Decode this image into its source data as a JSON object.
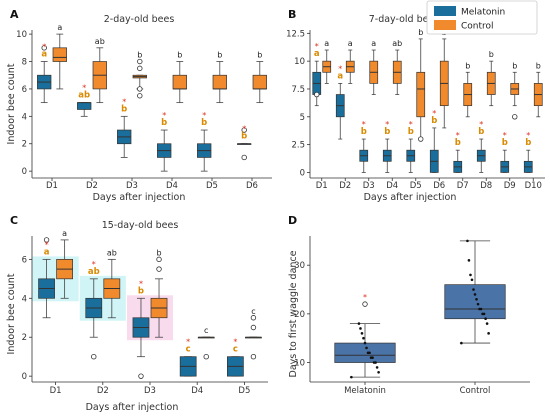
{
  "colors": {
    "melatonin": "#1a6e9b",
    "control": "#f08a2c",
    "box_d": "#4a73a8",
    "highlight_cyan": "#c6f2f4",
    "highlight_pink": "#f8d2ea",
    "star": "#e0301e",
    "letter_color": "#d98a00"
  },
  "legend": {
    "melatonin": "Melatonin",
    "control": "Control"
  },
  "chart_data": [
    {
      "panel": "A",
      "type": "box",
      "title": "2-day-old bees",
      "ylabel": "Indoor bee count",
      "xlabel": "Days after injection",
      "categories": [
        "D1",
        "D2",
        "D3",
        "D4",
        "D5",
        "D6"
      ],
      "ylim": [
        -0.5,
        10.3
      ],
      "yticks": [
        0,
        2,
        4,
        6,
        8,
        10
      ],
      "series": [
        {
          "name": "Melatonin",
          "boxes": [
            {
              "min": 5,
              "q1": 6,
              "med": 6.5,
              "q3": 7,
              "max": 8,
              "outliers": [
                9
              ]
            },
            {
              "min": 4,
              "q1": 4.5,
              "med": 5,
              "q3": 5,
              "max": 5,
              "outliers": []
            },
            {
              "min": 1,
              "q1": 2,
              "med": 2.5,
              "q3": 3,
              "max": 4,
              "outliers": []
            },
            {
              "min": 0,
              "q1": 1,
              "med": 1.5,
              "q3": 2,
              "max": 3,
              "outliers": []
            },
            {
              "min": 0,
              "q1": 1,
              "med": 1.5,
              "q3": 2,
              "max": 3,
              "outliers": []
            },
            {
              "min": 2,
              "q1": 2,
              "med": 2,
              "q3": 2,
              "max": 2,
              "outliers": [
                1,
                3
              ]
            }
          ]
        },
        {
          "name": "Control",
          "boxes": [
            {
              "min": 6,
              "q1": 8,
              "med": 8.3,
              "q3": 9,
              "max": 10,
              "outliers": []
            },
            {
              "min": 5,
              "q1": 6,
              "med": 7,
              "q3": 8,
              "max": 9,
              "outliers": []
            },
            {
              "min": 6,
              "q1": 6.8,
              "med": 6.9,
              "q3": 7,
              "max": 7,
              "outliers": [
                8,
                7.5,
                6,
                5.5
              ]
            },
            {
              "min": 5,
              "q1": 6,
              "med": 6,
              "q3": 7,
              "max": 8,
              "outliers": []
            },
            {
              "min": 5,
              "q1": 6,
              "med": 6,
              "q3": 7,
              "max": 8,
              "outliers": []
            },
            {
              "min": 5,
              "q1": 6,
              "med": 6,
              "q3": 7,
              "max": 8,
              "outliers": []
            }
          ]
        }
      ],
      "annotations": [
        {
          "cat": 0,
          "series": 0,
          "letter": "a",
          "star": true
        },
        {
          "cat": 0,
          "series": 1,
          "letter": "a",
          "star": false
        },
        {
          "cat": 1,
          "series": 0,
          "letter": "ab",
          "star": true
        },
        {
          "cat": 1,
          "series": 1,
          "letter": "ab",
          "star": false
        },
        {
          "cat": 2,
          "series": 0,
          "letter": "b",
          "star": true
        },
        {
          "cat": 2,
          "series": 1,
          "letter": "b",
          "star": false
        },
        {
          "cat": 3,
          "series": 0,
          "letter": "b",
          "star": true
        },
        {
          "cat": 3,
          "series": 1,
          "letter": "b",
          "star": false
        },
        {
          "cat": 4,
          "series": 0,
          "letter": "b",
          "star": true
        },
        {
          "cat": 4,
          "series": 1,
          "letter": "b",
          "star": false
        },
        {
          "cat": 5,
          "series": 0,
          "letter": "b",
          "star": true
        },
        {
          "cat": 5,
          "series": 1,
          "letter": "b",
          "star": false
        }
      ]
    },
    {
      "panel": "B",
      "type": "box",
      "title": "7-day-old bees",
      "ylabel": "",
      "xlabel": "Days after injection",
      "categories": [
        "D1",
        "D2",
        "D3",
        "D4",
        "D5",
        "D6",
        "D7",
        "D8",
        "D9",
        "D10"
      ],
      "ylim": [
        -0.5,
        12.8
      ],
      "yticks": [
        0,
        2.5,
        5,
        7.5,
        10,
        12.5
      ],
      "series": [
        {
          "name": "Melatonin",
          "boxes": [
            {
              "min": 6,
              "q1": 7,
              "med": 8,
              "q3": 9,
              "max": 10,
              "outliers": [
                7
              ]
            },
            {
              "min": 3,
              "q1": 5,
              "med": 6,
              "q3": 7,
              "max": 8,
              "outliers": []
            },
            {
              "min": 0,
              "q1": 1,
              "med": 1.5,
              "q3": 2,
              "max": 3,
              "outliers": []
            },
            {
              "min": 0,
              "q1": 1,
              "med": 1.5,
              "q3": 2,
              "max": 3,
              "outliers": []
            },
            {
              "min": 0,
              "q1": 1,
              "med": 1.5,
              "q3": 2,
              "max": 3,
              "outliers": []
            },
            {
              "min": 0,
              "q1": 0,
              "med": 1,
              "q3": 2,
              "max": 4,
              "outliers": []
            },
            {
              "min": 0,
              "q1": 0,
              "med": 0.5,
              "q3": 1,
              "max": 2,
              "outliers": []
            },
            {
              "min": 0,
              "q1": 1,
              "med": 1.5,
              "q3": 2,
              "max": 3,
              "outliers": []
            },
            {
              "min": 0,
              "q1": 0,
              "med": 0.5,
              "q3": 1,
              "max": 2,
              "outliers": []
            },
            {
              "min": 0,
              "q1": 0,
              "med": 0.5,
              "q3": 1,
              "max": 2,
              "outliers": []
            }
          ]
        },
        {
          "name": "Control",
          "boxes": [
            {
              "min": 8,
              "q1": 9,
              "med": 9.5,
              "q3": 10,
              "max": 11,
              "outliers": []
            },
            {
              "min": 8,
              "q1": 9,
              "med": 9.5,
              "q3": 10,
              "max": 11,
              "outliers": []
            },
            {
              "min": 7,
              "q1": 8,
              "med": 9,
              "q3": 10,
              "max": 11,
              "outliers": []
            },
            {
              "min": 7,
              "q1": 8,
              "med": 9,
              "q3": 10,
              "max": 11,
              "outliers": []
            },
            {
              "min": 3,
              "q1": 5,
              "med": 7.5,
              "q3": 9,
              "max": 12,
              "outliers": [
                3
              ]
            },
            {
              "min": 4,
              "q1": 6,
              "med": 8,
              "q3": 10,
              "max": 12,
              "outliers": []
            },
            {
              "min": 5,
              "q1": 6,
              "med": 7,
              "q3": 8,
              "max": 9,
              "outliers": []
            },
            {
              "min": 6,
              "q1": 7,
              "med": 8,
              "q3": 9,
              "max": 10,
              "outliers": []
            },
            {
              "min": 6,
              "q1": 7,
              "med": 7.5,
              "q3": 8,
              "max": 9,
              "outliers": [
                5
              ]
            },
            {
              "min": 5,
              "q1": 6,
              "med": 7,
              "q3": 8,
              "max": 9,
              "outliers": []
            }
          ]
        }
      ],
      "annotations": [
        {
          "cat": 0,
          "series": 0,
          "letter": "a",
          "star": true
        },
        {
          "cat": 0,
          "series": 1,
          "letter": "a",
          "star": false
        },
        {
          "cat": 1,
          "series": 0,
          "letter": "a",
          "star": true
        },
        {
          "cat": 1,
          "series": 1,
          "letter": "a",
          "star": false
        },
        {
          "cat": 2,
          "series": 0,
          "letter": "b",
          "star": true
        },
        {
          "cat": 2,
          "series": 1,
          "letter": "a",
          "star": false
        },
        {
          "cat": 3,
          "series": 0,
          "letter": "b",
          "star": true
        },
        {
          "cat": 3,
          "series": 1,
          "letter": "ab",
          "star": false
        },
        {
          "cat": 4,
          "series": 0,
          "letter": "b",
          "star": true
        },
        {
          "cat": 4,
          "series": 1,
          "letter": "b",
          "star": false
        },
        {
          "cat": 5,
          "series": 0,
          "letter": "b",
          "star": true
        },
        {
          "cat": 5,
          "series": 1,
          "letter": "b",
          "star": false
        },
        {
          "cat": 6,
          "series": 0,
          "letter": "b",
          "star": true
        },
        {
          "cat": 6,
          "series": 1,
          "letter": "b",
          "star": false
        },
        {
          "cat": 7,
          "series": 0,
          "letter": "b",
          "star": true
        },
        {
          "cat": 7,
          "series": 1,
          "letter": "b",
          "star": false
        },
        {
          "cat": 8,
          "series": 0,
          "letter": "b",
          "star": true
        },
        {
          "cat": 8,
          "series": 1,
          "letter": "b",
          "star": false
        },
        {
          "cat": 9,
          "series": 0,
          "letter": "b",
          "star": true
        },
        {
          "cat": 9,
          "series": 1,
          "letter": "b",
          "star": false
        }
      ]
    },
    {
      "panel": "C",
      "type": "box",
      "title": "15-day-old bees",
      "ylabel": "Indoor bee count",
      "xlabel": "Days after injection",
      "categories": [
        "D1",
        "D2",
        "D3",
        "D4",
        "D5"
      ],
      "ylim": [
        -0.3,
        7.2
      ],
      "yticks": [
        0,
        2,
        4,
        6
      ],
      "series": [
        {
          "name": "Melatonin",
          "boxes": [
            {
              "min": 3,
              "q1": 4,
              "med": 4.5,
              "q3": 5,
              "max": 6,
              "outliers": [
                7
              ]
            },
            {
              "min": 2,
              "q1": 3,
              "med": 3.5,
              "q3": 4,
              "max": 5,
              "outliers": [
                1
              ]
            },
            {
              "min": 1,
              "q1": 2,
              "med": 2.5,
              "q3": 3,
              "max": 4,
              "outliers": [
                0
              ]
            },
            {
              "min": 0,
              "q1": 0,
              "med": 0.5,
              "q3": 1,
              "max": 1,
              "outliers": []
            },
            {
              "min": 0,
              "q1": 0,
              "med": 0.5,
              "q3": 1,
              "max": 1,
              "outliers": []
            }
          ]
        },
        {
          "name": "Control",
          "boxes": [
            {
              "min": 4,
              "q1": 5,
              "med": 5.5,
              "q3": 6,
              "max": 7,
              "outliers": []
            },
            {
              "min": 3,
              "q1": 4,
              "med": 4.5,
              "q3": 5,
              "max": 6,
              "outliers": []
            },
            {
              "min": 2,
              "q1": 3,
              "med": 3.5,
              "q3": 4,
              "max": 5,
              "outliers": [
                6,
                5.5
              ]
            },
            {
              "min": 2,
              "q1": 2,
              "med": 2,
              "q3": 2,
              "max": 2,
              "outliers": [
                1
              ]
            },
            {
              "min": 2,
              "q1": 2,
              "med": 2,
              "q3": 2,
              "max": 2,
              "outliers": [
                3,
                2.5,
                1
              ]
            }
          ]
        }
      ],
      "annotations": [
        {
          "cat": 0,
          "series": 0,
          "letter": "a",
          "star": true
        },
        {
          "cat": 0,
          "series": 1,
          "letter": "a",
          "star": false
        },
        {
          "cat": 1,
          "series": 0,
          "letter": "ab",
          "star": true
        },
        {
          "cat": 1,
          "series": 1,
          "letter": "ab",
          "star": false
        },
        {
          "cat": 2,
          "series": 0,
          "letter": "b",
          "star": true
        },
        {
          "cat": 2,
          "series": 1,
          "letter": "b",
          "star": false
        },
        {
          "cat": 3,
          "series": 0,
          "letter": "c",
          "star": true
        },
        {
          "cat": 3,
          "series": 1,
          "letter": "c",
          "star": false
        },
        {
          "cat": 4,
          "series": 0,
          "letter": "c",
          "star": true
        },
        {
          "cat": 4,
          "series": 1,
          "letter": "c",
          "star": false
        }
      ]
    },
    {
      "panel": "D",
      "type": "box",
      "title": "",
      "ylabel": "Days to first waggle dance",
      "xlabel": "",
      "categories": [
        "Melatonin",
        "Control"
      ],
      "ylim": [
        6,
        36
      ],
      "yticks": [
        10,
        20,
        30
      ],
      "series": [
        {
          "name": "",
          "boxes": [
            {
              "min": 7,
              "q1": 10,
              "med": 11.5,
              "q3": 14,
              "max": 18,
              "outliers": [
                22
              ],
              "points": [
                7,
                8,
                9,
                10,
                10,
                11,
                11,
                12,
                12,
                13,
                14,
                15,
                16,
                17,
                18
              ]
            },
            {
              "min": 14,
              "q1": 19,
              "med": 21,
              "q3": 26,
              "max": 35,
              "outliers": [],
              "points": [
                14,
                16,
                18,
                19,
                20,
                20,
                21,
                21,
                22,
                23,
                24,
                25,
                27,
                28,
                31,
                35
              ]
            }
          ]
        }
      ],
      "annotations": [
        {
          "cat": 0,
          "series": 0,
          "letter": "",
          "star": true
        }
      ]
    }
  ]
}
